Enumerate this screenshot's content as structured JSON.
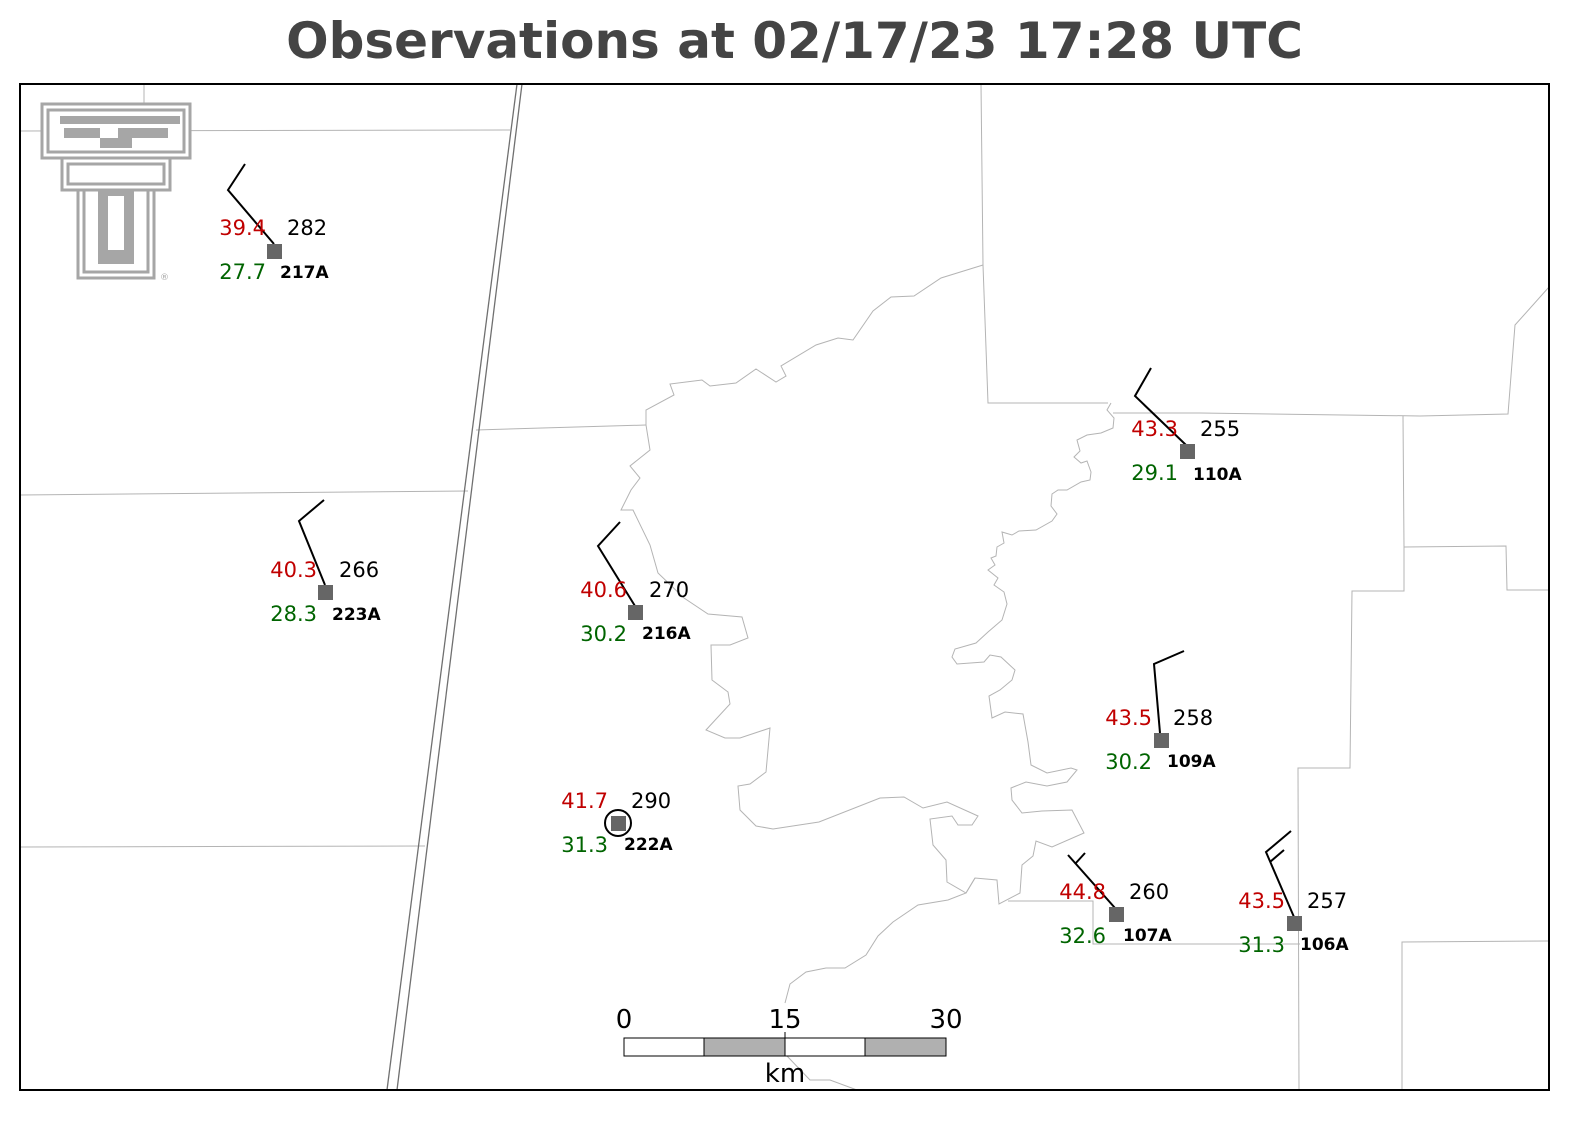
{
  "title": "Observations at 02/17/23 17:28 UTC",
  "colors": {
    "temperature": "#c00000",
    "dewpoint": "#006400",
    "direction": "#000000",
    "station_marker": "#666666",
    "boundaries": "#b4b4b4",
    "logo": "#a6a6a6",
    "scale_fill": "#b0b0b0"
  },
  "logo": {
    "icon": "texas-tech-double-t-logo",
    "mark": "®"
  },
  "stations": [
    {
      "id": "217A",
      "temp": "39.4",
      "dewpoint": "27.7",
      "direction": "282",
      "calm": false
    },
    {
      "id": "223A",
      "temp": "40.3",
      "dewpoint": "28.3",
      "direction": "266",
      "calm": false
    },
    {
      "id": "216A",
      "temp": "40.6",
      "dewpoint": "30.2",
      "direction": "270",
      "calm": false
    },
    {
      "id": "222A",
      "temp": "41.7",
      "dewpoint": "31.3",
      "direction": "290",
      "calm": true
    },
    {
      "id": "110A",
      "temp": "43.3",
      "dewpoint": "29.1",
      "direction": "255",
      "calm": false
    },
    {
      "id": "109A",
      "temp": "43.5",
      "dewpoint": "30.2",
      "direction": "258",
      "calm": false
    },
    {
      "id": "107A",
      "temp": "44.8",
      "dewpoint": "32.6",
      "direction": "260",
      "calm": false
    },
    {
      "id": "106A",
      "temp": "43.5",
      "dewpoint": "31.3",
      "direction": "257",
      "calm": false
    }
  ],
  "scale_bar": {
    "labels": [
      "0",
      "15",
      "30"
    ],
    "unit": "km"
  }
}
